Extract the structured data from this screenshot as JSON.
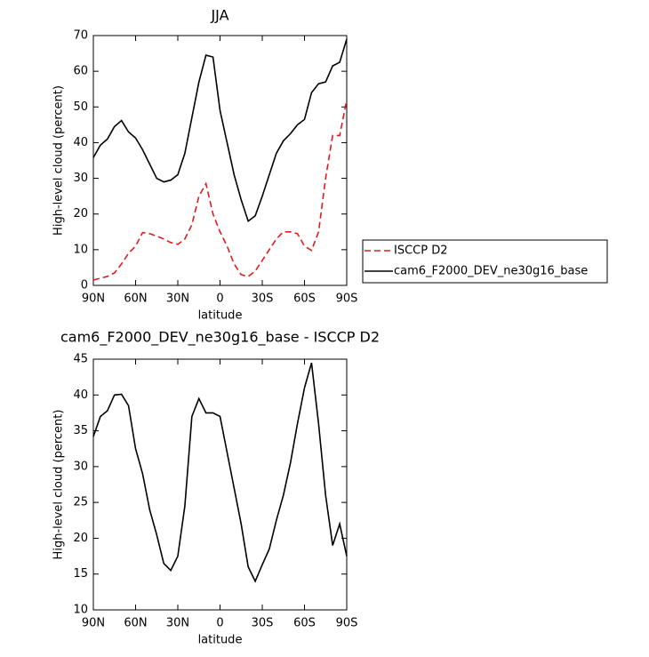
{
  "chart_data": [
    {
      "type": "line",
      "title": "JJA",
      "xlabel": "latitude",
      "ylabel": "High-level cloud (percent)",
      "x": [
        90,
        85,
        80,
        75,
        70,
        65,
        60,
        55,
        50,
        45,
        40,
        35,
        30,
        25,
        20,
        15,
        10,
        5,
        0,
        -5,
        -10,
        -15,
        -20,
        -25,
        -30,
        -35,
        -40,
        -45,
        -50,
        -55,
        -60,
        -65,
        -70,
        -75,
        -80,
        -85,
        -90
      ],
      "xlim": [
        90,
        -90
      ],
      "xticks": [
        {
          "value": 90,
          "label": "90N"
        },
        {
          "value": 60,
          "label": "60N"
        },
        {
          "value": 30,
          "label": "30N"
        },
        0,
        {
          "value": -30,
          "label": "30S"
        },
        {
          "value": -60,
          "label": "60S"
        },
        {
          "value": -90,
          "label": "90S"
        }
      ],
      "ylim": [
        0,
        70
      ],
      "yticks": [
        0,
        10,
        20,
        30,
        40,
        50,
        60,
        70
      ],
      "legend_position": "right",
      "series": [
        {
          "name": "ISCCP D2",
          "color": "#e41a1c",
          "line_style": "dashed",
          "values": [
            1.5,
            2,
            2.5,
            3.5,
            6,
            9,
            11,
            14.8,
            14.5,
            13.8,
            13,
            12,
            11.5,
            13,
            17,
            25,
            28.5,
            20,
            15,
            11,
            6,
            3,
            2.5,
            4,
            7,
            10,
            13,
            15,
            15,
            14.5,
            11,
            9.8,
            15,
            30,
            42,
            42,
            52
          ]
        },
        {
          "name": "cam6_F2000_DEV_ne30g16_base",
          "color": "#000000",
          "line_style": "solid",
          "values": [
            35.8,
            39.3,
            41,
            44.5,
            46.2,
            43,
            41.3,
            38,
            34,
            30,
            29,
            29.5,
            31,
            37,
            47,
            57,
            64.5,
            64,
            49,
            40,
            31,
            24,
            18,
            19.5,
            25,
            31,
            37,
            40.5,
            42.5,
            45,
            46.5,
            54,
            56.5,
            57,
            61.5,
            62.5,
            69
          ]
        }
      ]
    },
    {
      "type": "line",
      "title": "cam6_F2000_DEV_ne30g16_base - ISCCP D2",
      "xlabel": "latitude",
      "ylabel": "High-level cloud (percent)",
      "x": [
        90,
        85,
        80,
        75,
        70,
        65,
        60,
        55,
        50,
        45,
        40,
        35,
        30,
        25,
        20,
        15,
        10,
        5,
        0,
        -5,
        -10,
        -15,
        -20,
        -25,
        -30,
        -35,
        -40,
        -45,
        -50,
        -55,
        -60,
        -65,
        -70,
        -75,
        -80,
        -85,
        -90
      ],
      "xlim": [
        90,
        -90
      ],
      "xticks": [
        {
          "value": 90,
          "label": "90N"
        },
        {
          "value": 60,
          "label": "60N"
        },
        {
          "value": 30,
          "label": "30N"
        },
        0,
        {
          "value": -30,
          "label": "30S"
        },
        {
          "value": -60,
          "label": "60S"
        },
        {
          "value": -90,
          "label": "90S"
        }
      ],
      "ylim": [
        10,
        45
      ],
      "yticks": [
        10,
        15,
        20,
        25,
        30,
        35,
        40,
        45
      ],
      "series": [
        {
          "color": "#000000",
          "line_style": "solid",
          "values": [
            34.2,
            37,
            37.8,
            40,
            40.1,
            38.5,
            32.5,
            29,
            24,
            20.5,
            16.5,
            15.5,
            17.5,
            24.5,
            37,
            39.5,
            37.5,
            37.5,
            37,
            32,
            27,
            22,
            16,
            14,
            16.3,
            18.5,
            22.5,
            26,
            30.5,
            36,
            41,
            44.5,
            36,
            26,
            19,
            22,
            17.5
          ]
        }
      ]
    }
  ]
}
